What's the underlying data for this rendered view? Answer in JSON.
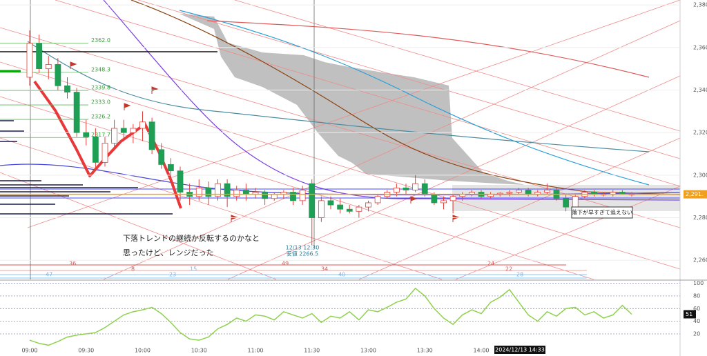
{
  "chart_data": [
    {
      "type": "candlestick",
      "categories": [
        "09:00",
        null,
        null,
        null,
        null,
        null,
        "09:30",
        null,
        null,
        null,
        null,
        null,
        "10:00",
        null,
        null,
        null,
        null,
        null,
        "10:30",
        null,
        null,
        null,
        null,
        null,
        "11:00",
        null,
        null,
        null,
        null,
        null,
        "11:30",
        null,
        null,
        null,
        null,
        null,
        "13:00",
        null,
        null,
        null,
        null,
        null,
        "13:30",
        null,
        null,
        null,
        null,
        null,
        "14:00",
        null,
        null,
        null,
        null,
        null,
        null,
        null,
        null,
        null,
        null,
        null,
        null,
        null,
        null,
        null,
        null
      ],
      "open": [
        2346,
        2362,
        2350,
        2352,
        2342,
        2339,
        2320,
        2318,
        2306,
        2315,
        2322,
        2320,
        2322,
        2325,
        2312,
        2305,
        2302,
        2292,
        2290,
        2294,
        2290,
        2296,
        2290,
        2293,
        2291,
        2292,
        2289,
        2291,
        2292,
        2288,
        2296,
        2280,
        2288,
        2286,
        2284,
        2283,
        2285,
        2287,
        2290,
        2292,
        2294,
        2293,
        2296,
        2291,
        2287,
        2288,
        2290,
        2291,
        2292,
        2290,
        2291,
        2291.5,
        2292,
        2293,
        2291,
        2292,
        2293,
        2289,
        2285,
        2290,
        2292,
        2291,
        2291,
        2292,
        2291
      ],
      "high": [
        2368,
        2366,
        2356,
        2355,
        2346,
        2341,
        2326,
        2322,
        2318,
        2326,
        2326,
        2324,
        2330,
        2327,
        2315,
        2308,
        2304,
        2296,
        2298,
        2297,
        2298,
        2298,
        2295,
        2296,
        2294,
        2293,
        2292,
        2293,
        2294,
        2295,
        2298,
        2290,
        2290,
        2289,
        2286,
        2286,
        2288,
        2291,
        2293,
        2296,
        2296,
        2300,
        2298,
        2292,
        2290,
        2291,
        2292,
        2293,
        2293,
        2292,
        2292,
        2293,
        2294,
        2294,
        2293,
        2296,
        2294,
        2291,
        2291,
        2293,
        2293,
        2292,
        2293,
        2293,
        2292
      ],
      "low": [
        2342,
        2348,
        2345,
        2340,
        2336,
        2318,
        2314,
        2302,
        2304,
        2312,
        2316,
        2315,
        2316,
        2310,
        2303,
        2298,
        2288,
        2286,
        2288,
        2286,
        2288,
        2285,
        2288,
        2288,
        2289,
        2286,
        2288,
        2289,
        2286,
        2286,
        2267,
        2278,
        2284,
        2282,
        2282,
        2280,
        2283,
        2286,
        2289,
        2290,
        2291,
        2292,
        2290,
        2286,
        2284,
        2282,
        2288,
        2290,
        2289,
        2289,
        2290,
        2290,
        2291,
        2290,
        2290,
        2291,
        2288,
        2283,
        2284,
        2289,
        2290,
        2290,
        2290,
        2291,
        2290
      ],
      "close": [
        2362,
        2350,
        2352,
        2342,
        2339,
        2320,
        2318,
        2306,
        2315,
        2322,
        2320,
        2322,
        2325,
        2312,
        2305,
        2302,
        2292,
        2290,
        2294,
        2290,
        2296,
        2290,
        2293,
        2291,
        2292,
        2289,
        2291,
        2292,
        2288,
        2293,
        2280,
        2288,
        2286,
        2284,
        2283,
        2285,
        2287,
        2290,
        2292,
        2294,
        2293,
        2296,
        2291,
        2287,
        2288,
        2290,
        2291,
        2292,
        2290,
        2291,
        2291.5,
        2292,
        2293,
        2291,
        2292,
        2293,
        2289,
        2285,
        2290,
        2292,
        2291,
        2291,
        2292,
        2291,
        2291
      ],
      "up_color": "#ffffff",
      "down_color": "#1f9e55",
      "wick_color": "#e0403a",
      "ylim": [
        2251,
        2382.3
      ],
      "yticks": [
        {
          "value": 2260,
          "label": "2,260"
        },
        {
          "value": 2280,
          "label": "2,280"
        },
        {
          "value": 2300,
          "label": "2,300"
        },
        {
          "value": 2320,
          "label": "2,320"
        },
        {
          "value": 2340,
          "label": "2,340"
        },
        {
          "value": 2360,
          "label": "2,360"
        },
        {
          "value": 2380,
          "label": "2,380"
        }
      ],
      "grid": true,
      "levels": [
        {
          "value": 2362.0,
          "label": "2362.0"
        },
        {
          "value": 2348.3,
          "label": "2348.3"
        },
        {
          "value": 2339.8,
          "label": "2339.8"
        },
        {
          "value": 2333.0,
          "label": "2333.0"
        },
        {
          "value": 2326.2,
          "label": "2326.2"
        },
        {
          "value": 2317.7,
          "label": "2317.7"
        }
      ],
      "current_price": {
        "value": 2291,
        "label": "2,291."
      },
      "low_note": [
        "12/13 12:30",
        "安値 2266.5"
      ],
      "annotations": [
        "下落トレンドの継続か反転するのかなと",
        "思ったけど、レンジだった",
        "落下が早すぎて追えない"
      ],
      "cursor_time": "2024/12/13 14:33",
      "bottom_labels": [
        "36",
        "8",
        "15",
        "49",
        "34",
        "40",
        "24",
        "22",
        "23",
        "47",
        "28"
      ]
    },
    {
      "type": "line",
      "color": "#8fd14f",
      "values": [
        10,
        5,
        2,
        8,
        15,
        18,
        20,
        22,
        30,
        40,
        50,
        55,
        58,
        62,
        52,
        38,
        22,
        12,
        10,
        15,
        28,
        35,
        45,
        40,
        50,
        48,
        42,
        55,
        50,
        45,
        52,
        38,
        48,
        45,
        55,
        42,
        58,
        55,
        62,
        70,
        75,
        92,
        80,
        60,
        45,
        35,
        50,
        58,
        52,
        70,
        78,
        90,
        70,
        50,
        40,
        55,
        48,
        60,
        62,
        50,
        55,
        45,
        50,
        65,
        51
      ],
      "ylim": [
        -15,
        105
      ],
      "yticks": [
        20,
        40,
        60,
        80,
        100
      ]
    }
  ]
}
